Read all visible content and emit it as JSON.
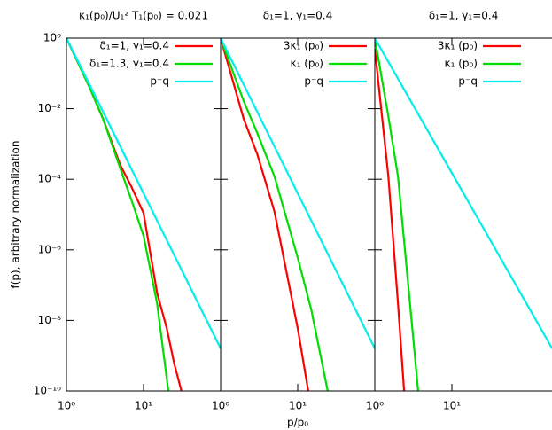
{
  "chart_data": [
    {
      "type": "line",
      "title": "κ₁(p₀)/U₁² T₁(p₀) = 0.021",
      "ylabel": "f(p), arbitrary normalization",
      "xlim": [
        1,
        100
      ],
      "ylim": [
        1e-10,
        1
      ],
      "log_x": true,
      "log_y": true,
      "xticks": [
        {
          "value": 1,
          "label": "10⁰"
        },
        {
          "value": 10,
          "label": "10¹"
        }
      ],
      "yticks": [
        {
          "value": 1,
          "label": "10⁰"
        },
        {
          "value": 0.01,
          "label": "10⁻²"
        },
        {
          "value": 0.0001,
          "label": "10⁻⁴"
        },
        {
          "value": 1e-06,
          "label": "10⁻⁶"
        },
        {
          "value": 1e-08,
          "label": "10⁻⁸"
        },
        {
          "value": 1e-10,
          "label": "10⁻¹⁰"
        }
      ],
      "series": [
        {
          "name": "δ₁=1, γ₁=0.4",
          "color": "#ff0000",
          "x": [
            1,
            2,
            3,
            5,
            7,
            10,
            15,
            20,
            25,
            31
          ],
          "values": [
            1,
            0.04,
            0.005,
            0.00025,
            6e-05,
            1.1e-05,
            6e-08,
            6e-09,
            6e-10,
            1e-10
          ]
        },
        {
          "name": "δ₁=1.3, γ₁=0.4",
          "color": "#00dd00",
          "x": [
            1,
            2,
            3,
            5,
            7,
            10,
            15,
            21
          ],
          "values": [
            1,
            0.04,
            0.005,
            0.0002,
            2.5e-05,
            2.5e-06,
            3e-08,
            1e-10
          ]
        },
        {
          "name": "p⁻q",
          "color": "#00eeee",
          "x": [
            1,
            100
          ],
          "values": [
            1,
            1.6e-09
          ]
        }
      ]
    },
    {
      "type": "line",
      "title": "δ₁=1, γ₁=0.4",
      "xlabel": "p/p₀",
      "xlim": [
        1,
        100
      ],
      "ylim": [
        1e-10,
        1
      ],
      "log_x": true,
      "log_y": true,
      "xticks": [
        {
          "value": 1,
          "label": "10⁰"
        },
        {
          "value": 10,
          "label": "10¹"
        }
      ],
      "series": [
        {
          "name": "3κ₁ (p₀)",
          "color": "#ff0000",
          "x": [
            1,
            2,
            3,
            5,
            7,
            10,
            13.7
          ],
          "values": [
            1,
            0.005,
            0.0005,
            1.2e-05,
            3e-07,
            6e-09,
            1e-10
          ]
        },
        {
          "name": "κ₁ (p₀)",
          "color": "#00dd00",
          "x": [
            1,
            2,
            3,
            5,
            10,
            15,
            24.5
          ],
          "values": [
            1,
            0.016,
            0.002,
            0.00012,
            6e-07,
            2e-08,
            1e-10
          ]
        },
        {
          "name": "p⁻q",
          "color": "#00eeee",
          "x": [
            1,
            100
          ],
          "values": [
            1,
            1.6e-09
          ]
        }
      ]
    },
    {
      "type": "line",
      "title": "δ₁=1, γ₁=0.4",
      "xlim": [
        1,
        200
      ],
      "ylim": [
        1e-10,
        1
      ],
      "log_x": true,
      "log_y": true,
      "xticks": [
        {
          "value": 1,
          "label": "10⁰"
        },
        {
          "value": 10,
          "label": "10¹"
        }
      ],
      "series": [
        {
          "name": "3κ₁ (p₀)",
          "color": "#ff0000",
          "x": [
            1,
            1.5,
            2,
            2.4
          ],
          "values": [
            0.5,
            0.00012,
            3e-08,
            1e-10
          ]
        },
        {
          "name": "κ₁ (p₀)",
          "color": "#00dd00",
          "x": [
            1,
            1.5,
            2,
            3,
            3.65
          ],
          "values": [
            1,
            0.006,
            0.00012,
            1e-08,
            1e-10
          ]
        },
        {
          "name": "p⁻q",
          "color": "#00eeee",
          "x": [
            1,
            200
          ],
          "values": [
            1,
            1.6e-09
          ]
        }
      ]
    }
  ]
}
